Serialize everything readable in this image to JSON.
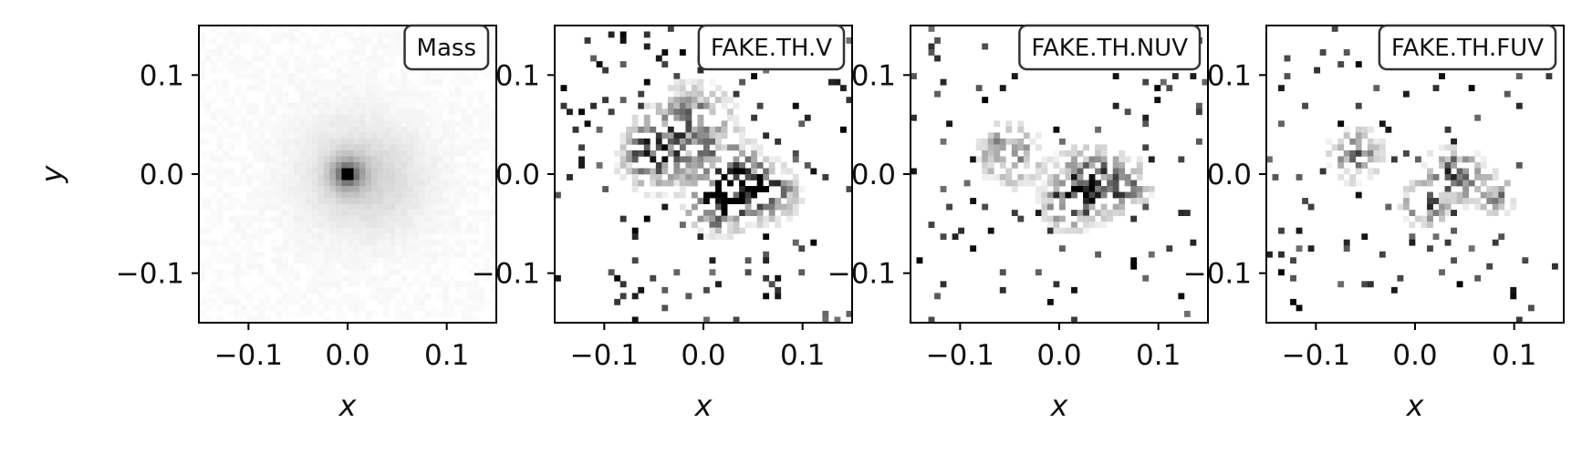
{
  "chart_data": [
    {
      "type": "heatmap",
      "title": "Mass",
      "xlabel": "x",
      "ylabel": "y",
      "xlim": [
        -0.15,
        0.15
      ],
      "ylim": [
        -0.15,
        0.15
      ],
      "xticks": [
        -0.1,
        0.0,
        0.1
      ],
      "yticks": [
        -0.1,
        0.0,
        0.1
      ],
      "xtick_labels": [
        "−0.1",
        "0.0",
        "0.1"
      ],
      "ytick_labels": [
        "−0.1",
        "0.0",
        "0.1"
      ],
      "colormap": "greys",
      "seed": 11,
      "components": [
        {
          "x": 0.0,
          "y": 0.0,
          "sigma": 0.004,
          "amp": 1.0
        },
        {
          "x": 0.0,
          "y": 0.0,
          "sigma": 0.012,
          "amp": 0.42
        },
        {
          "x": 0.005,
          "y": 0.0,
          "sigma": 0.04,
          "amp": 0.12
        },
        {
          "x": 0.04,
          "y": -0.01,
          "sigma": 0.035,
          "amp": 0.06
        }
      ],
      "background": 0.03,
      "noise": 0.04
    },
    {
      "type": "heatmap",
      "title": "FAKE.TH.V",
      "xlabel": "x",
      "ylabel": "",
      "xlim": [
        -0.15,
        0.15
      ],
      "ylim": [
        -0.15,
        0.15
      ],
      "xticks": [
        -0.1,
        0.0,
        0.1
      ],
      "yticks": [
        -0.1,
        0.0,
        0.1
      ],
      "xtick_labels": [
        "−0.1",
        "0.0",
        "0.1"
      ],
      "ytick_labels": [
        "−0.1",
        "0.0",
        "0.1"
      ],
      "colormap": "greys",
      "seed": 23,
      "components": [
        {
          "x": -0.05,
          "y": 0.02,
          "sigma": 0.02,
          "amp": 0.7
        },
        {
          "x": 0.03,
          "y": -0.01,
          "sigma": 0.022,
          "amp": 0.9
        },
        {
          "x": 0.01,
          "y": -0.03,
          "sigma": 0.015,
          "amp": 0.75
        },
        {
          "x": 0.07,
          "y": -0.02,
          "sigma": 0.015,
          "amp": 0.6
        },
        {
          "x": -0.01,
          "y": 0.05,
          "sigma": 0.025,
          "amp": 0.5
        }
      ],
      "background": 0.0,
      "noise": 0.55,
      "sparse_rate": 0.05
    },
    {
      "type": "heatmap",
      "title": "FAKE.TH.NUV",
      "xlabel": "x",
      "ylabel": "",
      "xlim": [
        -0.15,
        0.15
      ],
      "ylim": [
        -0.15,
        0.15
      ],
      "xticks": [
        -0.1,
        0.0,
        0.1
      ],
      "yticks": [
        -0.1,
        0.0,
        0.1
      ],
      "xtick_labels": [
        "−0.1",
        "0.0",
        "0.1"
      ],
      "ytick_labels": [
        "−0.1",
        "0.0",
        "0.1"
      ],
      "colormap": "greys",
      "seed": 37,
      "components": [
        {
          "x": -0.05,
          "y": 0.02,
          "sigma": 0.018,
          "amp": 0.55
        },
        {
          "x": 0.03,
          "y": -0.01,
          "sigma": 0.02,
          "amp": 0.8
        },
        {
          "x": 0.01,
          "y": -0.03,
          "sigma": 0.014,
          "amp": 0.7
        },
        {
          "x": 0.07,
          "y": -0.01,
          "sigma": 0.014,
          "amp": 0.5
        }
      ],
      "background": 0.0,
      "noise": 0.55,
      "sparse_rate": 0.045
    },
    {
      "type": "heatmap",
      "title": "FAKE.TH.FUV",
      "xlabel": "x",
      "ylabel": "",
      "xlim": [
        -0.15,
        0.15
      ],
      "ylim": [
        -0.15,
        0.15
      ],
      "xticks": [
        -0.1,
        0.0,
        0.1
      ],
      "yticks": [
        -0.1,
        0.0,
        0.1
      ],
      "xtick_labels": [
        "−0.1",
        "0.0",
        "0.1"
      ],
      "ytick_labels": [
        "−0.1",
        "0.0",
        "0.1"
      ],
      "colormap": "greys",
      "seed": 53,
      "components": [
        {
          "x": -0.06,
          "y": 0.02,
          "sigma": 0.016,
          "amp": 0.5
        },
        {
          "x": 0.04,
          "y": 0.0,
          "sigma": 0.016,
          "amp": 0.65
        },
        {
          "x": 0.01,
          "y": -0.03,
          "sigma": 0.013,
          "amp": 0.6
        },
        {
          "x": 0.08,
          "y": -0.02,
          "sigma": 0.013,
          "amp": 0.45
        }
      ],
      "background": 0.0,
      "noise": 0.55,
      "sparse_rate": 0.04
    }
  ]
}
